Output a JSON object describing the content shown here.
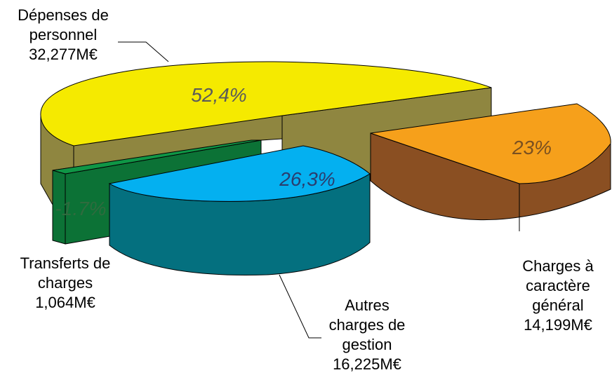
{
  "chart_data": {
    "type": "pie",
    "style": "3d-exploded",
    "slices": [
      {
        "label_lines": [
          "Dépenses de",
          "personnel"
        ],
        "amount": "32,277M€",
        "percent_label": "52,4%",
        "value": 32.277,
        "color": "#f5ea00",
        "side_color": "#8f8640"
      },
      {
        "label_lines": [
          "Charges à",
          "caractère",
          "général"
        ],
        "amount": "14,199M€",
        "percent_label": "23%",
        "value": 14.199,
        "color": "#f6a01b",
        "side_color": "#8a4f22"
      },
      {
        "label_lines": [
          "Autres",
          "charges de",
          "gestion"
        ],
        "amount": "16,225M€",
        "percent_label": "26,3%",
        "value": 16.225,
        "color": "#04b0f0",
        "side_color": "#04707f"
      },
      {
        "label_lines": [
          "Transferts de",
          "charges"
        ],
        "amount": "1,064M€",
        "percent_label": "-1.7%",
        "value": -1.064,
        "color": "#0f9646",
        "side_color": "#0c7236"
      }
    ]
  }
}
